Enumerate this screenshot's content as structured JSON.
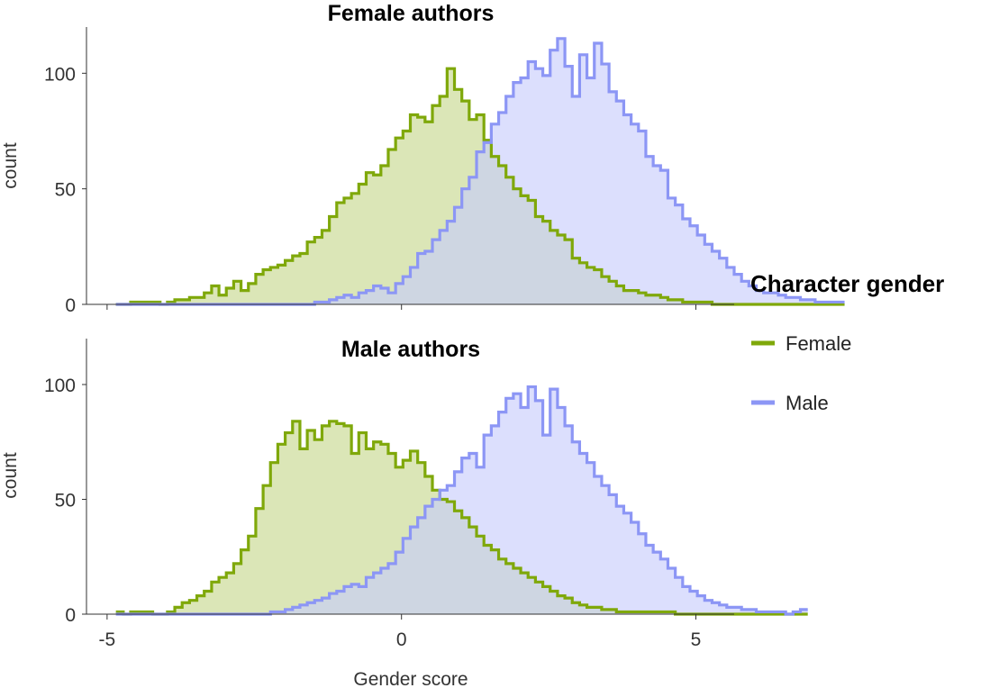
{
  "chart_data": {
    "type": "histogram",
    "x_label": "Gender score",
    "y_label": "count",
    "x_ticks": [
      -5,
      0,
      5
    ],
    "y_ticks": [
      0,
      50,
      100
    ],
    "xlim": [
      -5.35,
      5.65
    ],
    "ylim": [
      0,
      120
    ],
    "bins": {
      "start": -4.85,
      "width": 0.125
    },
    "legend": {
      "title": "Character gender",
      "position": "right",
      "entries": [
        {
          "name": "Female",
          "color": "#7fa80a"
        },
        {
          "name": "Male",
          "color": "#8c96f5"
        }
      ]
    },
    "panels": [
      {
        "title": "Female authors",
        "series": [
          {
            "name": "Female",
            "color": "#7fa80a",
            "fill": "#c5d78a",
            "values": [
              0,
              0,
              1,
              1,
              1,
              1,
              0,
              1,
              2,
              2,
              3,
              3,
              5,
              8,
              4,
              7,
              10,
              6,
              9,
              13,
              15,
              16,
              17,
              19,
              21,
              22,
              27,
              29,
              32,
              38,
              44,
              46,
              48,
              52,
              57,
              56,
              60,
              67,
              72,
              75,
              82,
              81,
              79,
              86,
              90,
              102,
              93,
              88,
              80,
              82,
              71,
              64,
              60,
              55,
              50,
              47,
              45,
              38,
              36,
              32,
              30,
              28,
              20,
              18,
              16,
              15,
              12,
              10,
              8,
              6,
              6,
              5,
              4,
              4,
              3,
              2,
              2,
              1,
              1,
              1,
              1,
              0,
              0,
              0,
              0,
              0,
              0,
              0,
              0,
              0,
              0,
              0,
              0,
              0,
              0,
              0,
              0,
              0,
              0
            ]
          },
          {
            "name": "Male",
            "color": "#8c96f5",
            "fill": "#c6cbfb",
            "values": [
              0,
              0,
              0,
              0,
              0,
              0,
              0,
              0,
              0,
              0,
              0,
              0,
              0,
              0,
              0,
              0,
              0,
              0,
              0,
              0,
              0,
              0,
              0,
              0,
              0,
              0,
              0,
              1,
              1,
              2,
              3,
              4,
              3,
              5,
              6,
              8,
              7,
              5,
              9,
              12,
              16,
              22,
              23,
              28,
              32,
              36,
              42,
              50,
              55,
              66,
              70,
              78,
              83,
              90,
              96,
              98,
              105,
              102,
              99,
              110,
              115,
              103,
              90,
              108,
              98,
              113,
              104,
              92,
              88,
              82,
              78,
              75,
              64,
              60,
              58,
              46,
              43,
              37,
              34,
              30,
              26,
              23,
              20,
              16,
              13,
              10,
              8,
              6,
              5,
              5,
              4,
              3,
              3,
              2,
              2,
              1,
              1,
              1,
              1
            ]
          }
        ]
      },
      {
        "title": "Male authors",
        "series": [
          {
            "name": "Female",
            "color": "#7fa80a",
            "fill": "#c5d78a",
            "values": [
              1,
              0,
              1,
              1,
              1,
              0,
              0,
              1,
              3,
              5,
              6,
              8,
              10,
              14,
              16,
              18,
              22,
              28,
              34,
              46,
              56,
              66,
              74,
              79,
              84,
              72,
              80,
              76,
              82,
              84,
              83,
              82,
              70,
              79,
              72,
              75,
              74,
              70,
              64,
              67,
              71,
              66,
              60,
              54,
              50,
              49,
              45,
              42,
              38,
              34,
              30,
              28,
              24,
              22,
              20,
              18,
              16,
              14,
              12,
              10,
              8,
              7,
              5,
              4,
              3,
              3,
              2,
              2,
              1,
              1,
              1,
              1,
              1,
              1,
              1,
              1,
              0,
              0,
              0,
              0,
              0,
              0,
              0,
              0,
              0,
              0,
              0,
              0,
              0,
              0,
              0,
              0,
              0,
              0
            ]
          },
          {
            "name": "Male",
            "color": "#8c96f5",
            "fill": "#c6cbfb",
            "values": [
              0,
              0,
              0,
              0,
              0,
              0,
              0,
              0,
              0,
              0,
              0,
              0,
              0,
              0,
              0,
              0,
              0,
              0,
              0,
              0,
              0,
              1,
              1,
              2,
              3,
              4,
              5,
              6,
              7,
              9,
              10,
              12,
              13,
              12,
              16,
              18,
              20,
              22,
              27,
              33,
              38,
              42,
              47,
              50,
              54,
              56,
              62,
              68,
              70,
              64,
              78,
              82,
              88,
              94,
              96,
              90,
              99,
              93,
              78,
              98,
              90,
              82,
              75,
              70,
              66,
              60,
              56,
              52,
              47,
              44,
              40,
              35,
              30,
              27,
              24,
              20,
              16,
              12,
              10,
              8,
              6,
              5,
              4,
              3,
              3,
              2,
              2,
              1,
              1,
              1,
              1,
              0,
              1,
              2
            ]
          }
        ]
      }
    ]
  }
}
